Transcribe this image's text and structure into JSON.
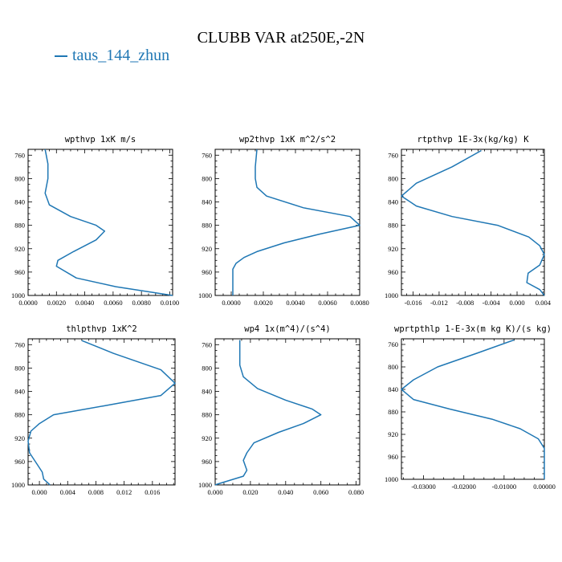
{
  "title": "CLUBB VAR at250E,-2N",
  "legend": {
    "label": "taus_144_zhun",
    "color": "#1f77b4"
  },
  "chart_data": [
    {
      "type": "line",
      "title": "wpthvp  1xK m/s",
      "xlim": [
        0,
        0.0102
      ],
      "ylim": [
        1000,
        750
      ],
      "xticks": [
        0,
        0.002,
        0.004,
        0.006,
        0.008,
        0.01
      ],
      "xticklabels": [
        "0.0000",
        "0.0020",
        "0.0040",
        "0.0060",
        "0.0080",
        "0.0100"
      ],
      "yticks": [
        760,
        800,
        840,
        880,
        920,
        960,
        1000
      ],
      "series": [
        {
          "color": "#1f77b4",
          "points": [
            [
              0.0012,
              750
            ],
            [
              0.0014,
              775
            ],
            [
              0.0014,
              800
            ],
            [
              0.0012,
              825
            ],
            [
              0.0015,
              845
            ],
            [
              0.003,
              865
            ],
            [
              0.0048,
              880
            ],
            [
              0.0054,
              890
            ],
            [
              0.0048,
              905
            ],
            [
              0.0032,
              925
            ],
            [
              0.0021,
              940
            ],
            [
              0.002,
              950
            ],
            [
              0.0034,
              970
            ],
            [
              0.0062,
              985
            ],
            [
              0.0102,
              1000
            ]
          ]
        }
      ]
    },
    {
      "type": "line",
      "title": "wp2thvp  1xK m^2/s^2",
      "xlim": [
        -0.001,
        0.008
      ],
      "ylim": [
        1000,
        750
      ],
      "xticks": [
        0,
        0.002,
        0.004,
        0.006,
        0.008
      ],
      "xticklabels": [
        "0.0000",
        "0.0020",
        "0.0040",
        "0.0060",
        "0.0080"
      ],
      "yticks": [
        760,
        800,
        840,
        880,
        920,
        960,
        1000
      ],
      "series": [
        {
          "color": "#1f77b4",
          "points": [
            [
              0.0016,
              750
            ],
            [
              0.0015,
              780
            ],
            [
              0.0015,
              800
            ],
            [
              0.0016,
              815
            ],
            [
              0.0022,
              830
            ],
            [
              0.0045,
              850
            ],
            [
              0.0074,
              865
            ],
            [
              0.008,
              880
            ],
            [
              0.0055,
              895
            ],
            [
              0.0033,
              910
            ],
            [
              0.0016,
              925
            ],
            [
              0.0008,
              935
            ],
            [
              0.0003,
              945
            ],
            [
              0.0001,
              955
            ],
            [
              0.0001,
              975
            ],
            [
              0.0001,
              990
            ],
            [
              0.0001,
              1000
            ]
          ]
        }
      ]
    },
    {
      "type": "line",
      "title": "rtpthvp  1E-3x(kg/kg) K",
      "xlim": [
        -0.0178,
        0.0042
      ],
      "ylim": [
        1000,
        750
      ],
      "xticks": [
        -0.016,
        -0.012,
        -0.008,
        -0.004,
        0,
        0.004
      ],
      "xticklabels": [
        "-0.016",
        "-0.012",
        "-0.008",
        "-0.004",
        "0.000",
        "0.004"
      ],
      "yticks": [
        760,
        800,
        840,
        880,
        920,
        960,
        1000
      ],
      "series": [
        {
          "color": "#1f77b4",
          "points": [
            [
              -0.0055,
              752
            ],
            [
              -0.01,
              780
            ],
            [
              -0.0155,
              808
            ],
            [
              -0.0178,
              830
            ],
            [
              -0.0155,
              847
            ],
            [
              -0.01,
              865
            ],
            [
              -0.003,
              880
            ],
            [
              0.0018,
              900
            ],
            [
              0.0035,
              915
            ],
            [
              0.0042,
              930
            ],
            [
              0.0035,
              948
            ],
            [
              0.0017,
              962
            ],
            [
              0.0015,
              978
            ],
            [
              0.0035,
              990
            ],
            [
              0.0042,
              1000
            ]
          ]
        }
      ]
    },
    {
      "type": "line",
      "title": "thlpthvp  1xK^2",
      "xlim": [
        -0.0016,
        0.0192
      ],
      "ylim": [
        1000,
        750
      ],
      "xticks": [
        0,
        0.004,
        0.008,
        0.012,
        0.016
      ],
      "xticklabels": [
        "0.000",
        "0.004",
        "0.008",
        "0.012",
        "0.016"
      ],
      "yticks": [
        760,
        800,
        840,
        880,
        920,
        960,
        1000
      ],
      "series": [
        {
          "color": "#1f77b4",
          "points": [
            [
              0.006,
              753
            ],
            [
              0.0105,
              775
            ],
            [
              0.0172,
              803
            ],
            [
              0.0192,
              826
            ],
            [
              0.0172,
              847
            ],
            [
              0.009,
              865
            ],
            [
              0.002,
              880
            ],
            [
              0,
              895
            ],
            [
              -0.0012,
              908
            ],
            [
              -0.0016,
              925
            ],
            [
              -0.0014,
              945
            ],
            [
              -0.0003,
              965
            ],
            [
              0.0004,
              978
            ],
            [
              0.0006,
              990
            ],
            [
              0.0015,
              1000
            ]
          ]
        }
      ]
    },
    {
      "type": "line",
      "title": "wp4  1x(m^4)/(s^4)",
      "xlim": [
        0,
        0.082
      ],
      "ylim": [
        1000,
        750
      ],
      "xticks": [
        0,
        0.02,
        0.04,
        0.06,
        0.08
      ],
      "xticklabels": [
        "0.000",
        "0.020",
        "0.040",
        "0.060",
        "0.080"
      ],
      "yticks": [
        760,
        800,
        840,
        880,
        920,
        960,
        1000
      ],
      "series": [
        {
          "color": "#1f77b4",
          "points": [
            [
              0.014,
              752
            ],
            [
              0.014,
              775
            ],
            [
              0.014,
              795
            ],
            [
              0.016,
              815
            ],
            [
              0.024,
              835
            ],
            [
              0.04,
              855
            ],
            [
              0.055,
              870
            ],
            [
              0.06,
              880
            ],
            [
              0.05,
              895
            ],
            [
              0.036,
              910
            ],
            [
              0.022,
              928
            ],
            [
              0.018,
              945
            ],
            [
              0.016,
              958
            ],
            [
              0.018,
              975
            ],
            [
              0.016,
              985
            ],
            [
              0.002,
              998
            ],
            [
              0,
              1000
            ]
          ]
        }
      ]
    },
    {
      "type": "line",
      "title": "wprtpthlp  1-E-3x(m kg K)/(s kg)",
      "xlim": [
        -0.0355,
        0
      ],
      "ylim": [
        1000,
        750
      ],
      "xticks": [
        -0.03,
        -0.02,
        -0.01,
        0
      ],
      "xticklabels": [
        "-0.03000",
        "-0.02000",
        "-0.01000",
        "0.00000"
      ],
      "yticks": [
        760,
        800,
        840,
        880,
        920,
        960,
        1000
      ],
      "series": [
        {
          "color": "#1f77b4",
          "points": [
            [
              -0.0075,
              752
            ],
            [
              -0.0165,
              775
            ],
            [
              -0.0265,
              800
            ],
            [
              -0.0325,
              823
            ],
            [
              -0.0355,
              840
            ],
            [
              -0.0325,
              858
            ],
            [
              -0.0235,
              875
            ],
            [
              -0.013,
              893
            ],
            [
              -0.006,
              910
            ],
            [
              -0.0015,
              928
            ],
            [
              0,
              945
            ],
            [
              0,
              965
            ],
            [
              0,
              1000
            ]
          ]
        }
      ]
    }
  ]
}
